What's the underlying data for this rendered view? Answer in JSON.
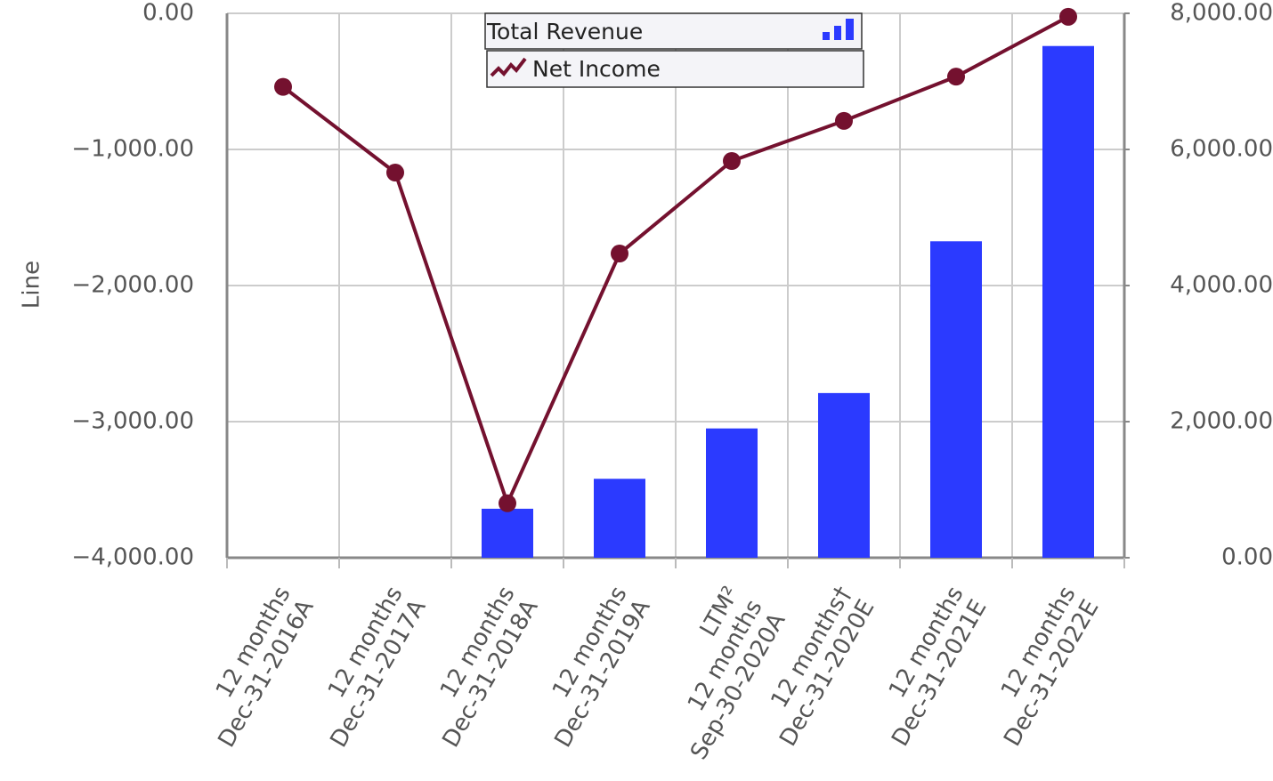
{
  "chart_data": {
    "type": "bar-line",
    "y_label": "Line",
    "categories": [
      [
        "12 months",
        "Dec-31-2016A"
      ],
      [
        "12 months",
        "Dec-31-2017A"
      ],
      [
        "12 months",
        "Dec-31-2018A"
      ],
      [
        "12 months",
        "Dec-31-2019A"
      ],
      [
        "LTM²",
        "12 months",
        "Sep-30-2020A"
      ],
      [
        "12 months†",
        "Dec-31-2020E"
      ],
      [
        "12 months",
        "Dec-31-2021E"
      ],
      [
        "12 months",
        "Dec-31-2022E"
      ]
    ],
    "series": [
      {
        "name": "Total Revenue",
        "type": "bar",
        "axis": "y2",
        "color": "#2b3aff",
        "values": [
          null,
          null,
          720,
          1160,
          1900,
          2420,
          4650,
          7520
        ]
      },
      {
        "name": "Net Income",
        "type": "line",
        "axis": "y",
        "color": "#74112f",
        "values": [
          -540,
          -1170,
          -3600,
          -1765,
          -1085,
          -790,
          -465,
          -25
        ]
      }
    ],
    "ylim": [
      -4000,
      0
    ],
    "yticks": [
      {
        "value": 0,
        "label": "0.00"
      },
      {
        "value": -1000,
        "label": "−1,000.00"
      },
      {
        "value": -2000,
        "label": "−2,000.00"
      },
      {
        "value": -3000,
        "label": "−3,000.00"
      },
      {
        "value": -4000,
        "label": "−4,000.00"
      }
    ],
    "y2lim": [
      0,
      8000
    ],
    "y2ticks": [
      {
        "value": 0,
        "label": "0.00"
      },
      {
        "value": 2000,
        "label": "2,000.00"
      },
      {
        "value": 4000,
        "label": "4,000.00"
      },
      {
        "value": 6000,
        "label": "6,000.00"
      },
      {
        "value": 8000,
        "label": "8,000.00"
      }
    ],
    "grid": true
  }
}
